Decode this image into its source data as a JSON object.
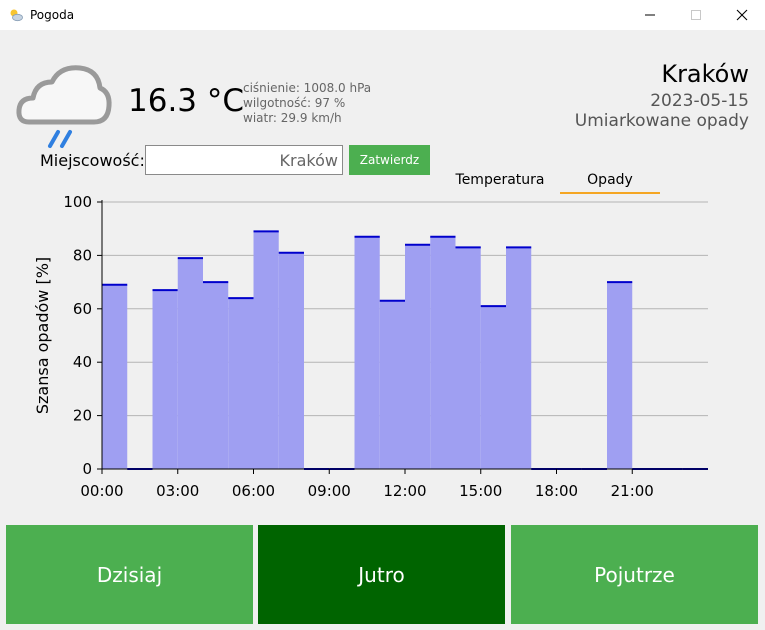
{
  "window": {
    "title": "Pogoda",
    "controls": [
      "minimize-icon",
      "maximize-icon",
      "close-icon"
    ]
  },
  "current": {
    "temperature": "16.3 °C",
    "pressure": "ciśnienie: 1008.0 hPa",
    "humidity": "wilgotność: 97 %",
    "wind": "wiatr: 29.9 km/h",
    "icon": "cloud-rain-icon"
  },
  "location": {
    "city": "Kraków",
    "date": "2023-05-15",
    "condition": "Umiarkowane opady"
  },
  "search": {
    "label": "Miejscowość:",
    "value": "Kraków",
    "submit_label": "Zatwierdz"
  },
  "tabs": [
    {
      "label": "Temperatura",
      "active": false
    },
    {
      "label": "Opady",
      "active": true
    }
  ],
  "colors": {
    "bar_fill": "#9f9ff2",
    "bar_top": "#0000cc",
    "accent_green": "#4caf50",
    "active_dark_green": "#006400",
    "tab_underline": "#f5a623"
  },
  "chart_data": {
    "type": "bar",
    "style": "step",
    "ylabel": "Szansa opadów [%]",
    "xlabel": "",
    "ylim": [
      0,
      100
    ],
    "yticks": [
      0,
      20,
      40,
      60,
      80,
      100
    ],
    "xtick_labels": [
      "00:00",
      "03:00",
      "06:00",
      "09:00",
      "12:00",
      "15:00",
      "18:00",
      "21:00"
    ],
    "xtick_hours": [
      0,
      3,
      6,
      9,
      12,
      15,
      18,
      21
    ],
    "grid": true,
    "categories": [
      "00:00",
      "01:00",
      "02:00",
      "03:00",
      "04:00",
      "05:00",
      "06:00",
      "07:00",
      "08:00",
      "09:00",
      "10:00",
      "11:00",
      "12:00",
      "13:00",
      "14:00",
      "15:00",
      "16:00",
      "17:00",
      "18:00",
      "19:00",
      "20:00",
      "21:00",
      "22:00",
      "23:00"
    ],
    "values": [
      69,
      0,
      67,
      79,
      70,
      64,
      89,
      81,
      0,
      0,
      87,
      63,
      84,
      87,
      83,
      61,
      83,
      0,
      0,
      0,
      70,
      0,
      0,
      0
    ]
  },
  "day_buttons": [
    {
      "label": "Dzisiaj",
      "active": false
    },
    {
      "label": "Jutro",
      "active": true
    },
    {
      "label": "Pojutrze",
      "active": false
    }
  ]
}
